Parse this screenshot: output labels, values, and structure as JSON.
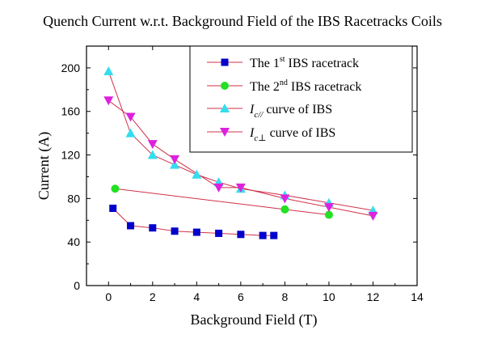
{
  "chart_data": {
    "type": "scatter",
    "title": "Quench Current w.r.t. Background Field of the IBS Racetracks Coils",
    "xlabel": "Background Field (T)",
    "ylabel": "Current (A)",
    "xlim": [
      -1,
      14
    ],
    "ylim": [
      0,
      220
    ],
    "xticks": [
      0,
      2,
      4,
      6,
      8,
      10,
      12,
      14
    ],
    "yticks": [
      0,
      40,
      80,
      120,
      160,
      200
    ],
    "legend_position": "top-right",
    "series": [
      {
        "name": "The 1st IBS racetrack",
        "legend": {
          "pre": "The 1",
          "sup": "st",
          "post": " IBS racetrack"
        },
        "color": "#0000cc",
        "line_color": "#d0304a",
        "marker": "square",
        "x": [
          0.2,
          1,
          2,
          3,
          4,
          5,
          6,
          7,
          7.5
        ],
        "y": [
          71,
          55,
          53,
          50,
          49,
          48,
          47,
          46,
          46
        ]
      },
      {
        "name": "The 2nd IBS racetrack",
        "legend": {
          "pre": "The 2",
          "sup": "nd",
          "post": " IBS racetrack"
        },
        "color": "#22e022",
        "line_color": "#d0304a",
        "marker": "circle",
        "x": [
          0.3,
          8,
          10
        ],
        "y": [
          89,
          70,
          65
        ]
      },
      {
        "name": "I c// curve of IBS",
        "legend": {
          "italic": "I",
          "sub": "c//",
          "post": " curve of IBS"
        },
        "color": "#33ddee",
        "line_color": "#d0304a",
        "marker": "triangle-up",
        "x": [
          0,
          1,
          2,
          3,
          4,
          5,
          6,
          8,
          10,
          12
        ],
        "y": [
          197,
          140,
          120,
          111,
          102,
          95,
          89,
          83,
          76,
          69
        ]
      },
      {
        "name": "I c⊥ curve of IBS",
        "legend": {
          "italic": "I",
          "sub": "c⊥",
          "post": " curve of IBS"
        },
        "color": "#dd22dd",
        "line_color": "#d0304a",
        "marker": "triangle-down",
        "x": [
          0,
          1,
          2,
          3,
          5,
          6,
          8,
          10,
          12
        ],
        "y": [
          170,
          155,
          130,
          116,
          90,
          90,
          80,
          72,
          64
        ]
      }
    ]
  }
}
